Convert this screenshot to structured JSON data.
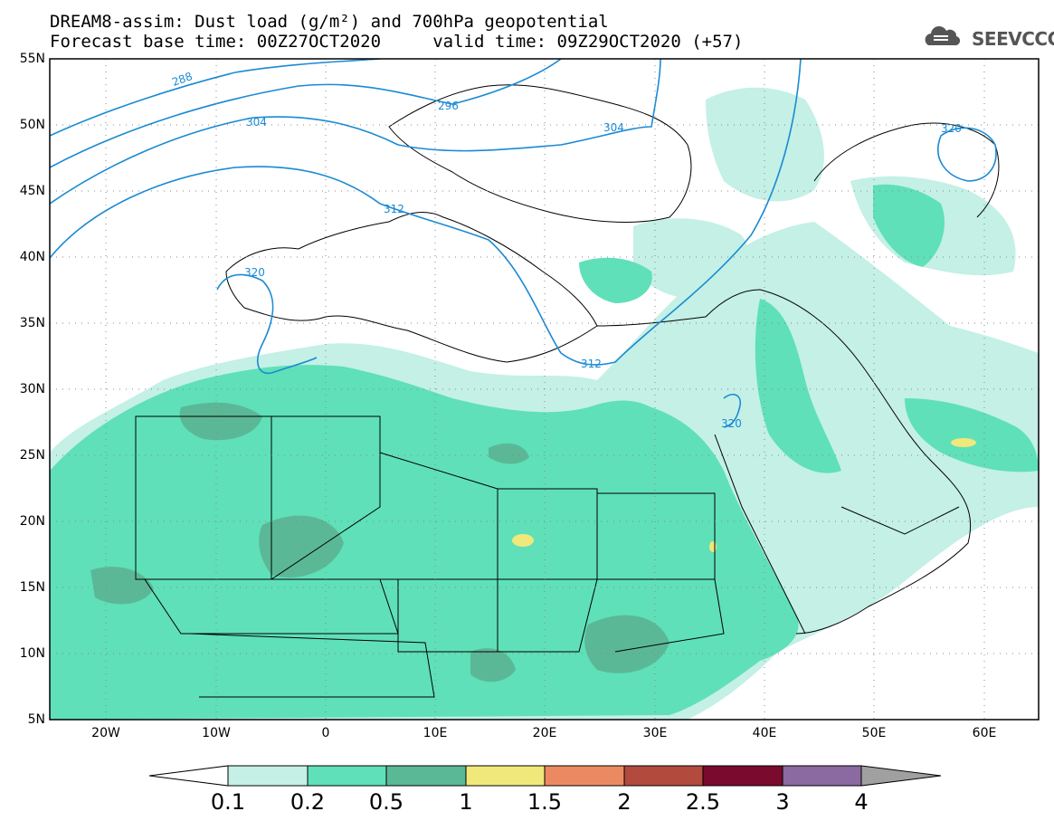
{
  "title_line1": "DREAM8-assim: Dust load (g/m²) and 700hPa geopotential",
  "title_line2": "Forecast base time: 00Z27OCT2020     valid time: 09Z29OCT2020 (+57)",
  "logo_text": "SEEVCCC",
  "map_data": {
    "type": "dust-load-map",
    "lat_ticks": [
      "55N",
      "50N",
      "45N",
      "40N",
      "35N",
      "30N",
      "25N",
      "20N",
      "15N",
      "10N",
      "5N"
    ],
    "lon_ticks": [
      "20W",
      "10W",
      "0",
      "10E",
      "20E",
      "30E",
      "40E",
      "50E",
      "60E"
    ],
    "extent": {
      "lon_min": -25,
      "lon_max": 65,
      "lat_min": 5,
      "lat_max": 55
    },
    "geopotential_contour_labels": [
      "288",
      "296",
      "304",
      "304",
      "312",
      "312",
      "320",
      "320",
      "320"
    ],
    "colorbar": {
      "labels": [
        "0.1",
        "0.2",
        "0.5",
        "1",
        "1.5",
        "2",
        "2.5",
        "3",
        "4"
      ],
      "colors": [
        "#ffffff",
        "#c4f0e6",
        "#5fe0b8",
        "#5bb896",
        "#f0e87a",
        "#eb8a62",
        "#b24a3e",
        "#7a0a2e",
        "#8a6aa0",
        "#a0a0a0"
      ]
    },
    "contour_color": "#1a8ad4"
  }
}
